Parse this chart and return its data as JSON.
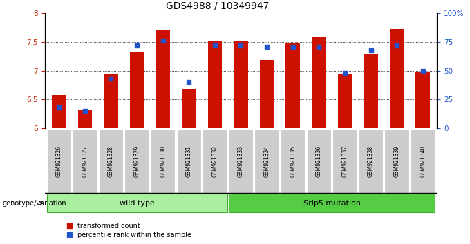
{
  "title": "GDS4988 / 10349947",
  "samples": [
    "GSM921326",
    "GSM921327",
    "GSM921328",
    "GSM921329",
    "GSM921330",
    "GSM921331",
    "GSM921332",
    "GSM921333",
    "GSM921334",
    "GSM921335",
    "GSM921336",
    "GSM921337",
    "GSM921338",
    "GSM921339",
    "GSM921340"
  ],
  "transformed_counts": [
    6.57,
    6.32,
    6.95,
    7.32,
    7.7,
    6.68,
    7.53,
    7.51,
    7.19,
    7.49,
    7.6,
    6.93,
    7.28,
    7.73,
    6.98
  ],
  "percentile_ranks": [
    18,
    15,
    43,
    72,
    76,
    40,
    72,
    72,
    71,
    71,
    71,
    48,
    68,
    72,
    50
  ],
  "ylim_left": [
    6.0,
    8.0
  ],
  "ylim_right": [
    0,
    100
  ],
  "yticks_left": [
    6.0,
    6.5,
    7.0,
    7.5,
    8.0
  ],
  "yticks_right": [
    0,
    25,
    50,
    75,
    100
  ],
  "grid_values": [
    6.5,
    7.0,
    7.5
  ],
  "bar_color": "#cc1100",
  "dot_color": "#2255cc",
  "bar_bottom": 6.0,
  "n_wild_type": 7,
  "wild_type_label": "wild type",
  "mutation_label": "Srlp5 mutation",
  "genotype_label": "genotype/variation",
  "legend_count_label": "transformed count",
  "legend_pct_label": "percentile rank within the sample",
  "green_light": "#aaeea0",
  "green_dark": "#55cc44",
  "tick_color_left": "#cc2200",
  "tick_color_right": "#2255cc",
  "title_fontsize": 10,
  "axis_fontsize": 7.5,
  "bar_width": 0.55,
  "sample_box_color": "#cccccc",
  "sample_text_fontsize": 5.5
}
